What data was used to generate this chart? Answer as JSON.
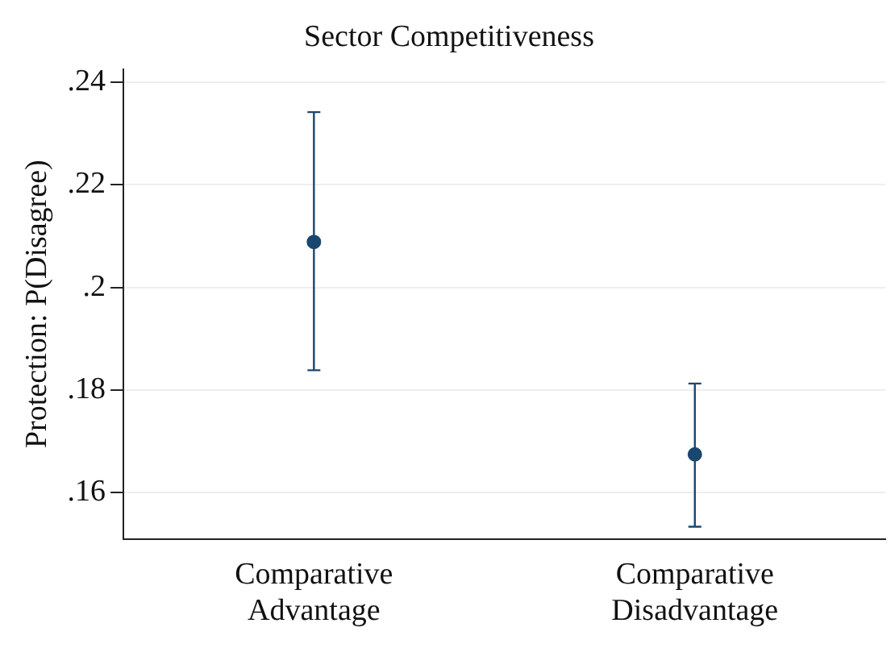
{
  "chart_data": {
    "type": "scatter",
    "title": "Sector Competitiveness",
    "ylabel": "Protection: P(Disagree)",
    "categories": [
      "Comparative Advantage",
      "Comparative Disadvantage"
    ],
    "values": [
      0.2089,
      0.1675
    ],
    "color": "#1a476f",
    "errors": [
      [
        0.1839,
        0.2342
      ],
      [
        0.1534,
        0.1813
      ]
    ],
    "ylim": [
      0.151,
      0.2426
    ],
    "yticks": [
      {
        "value": 0.16,
        "label": ".16"
      },
      {
        "value": 0.18,
        "label": ".18"
      },
      {
        "value": 0.2,
        "label": ".2"
      },
      {
        "value": 0.22,
        "label": ".22"
      },
      {
        "value": 0.24,
        "label": ".24"
      }
    ],
    "grid": "y",
    "marker": "circle",
    "legend": false
  }
}
